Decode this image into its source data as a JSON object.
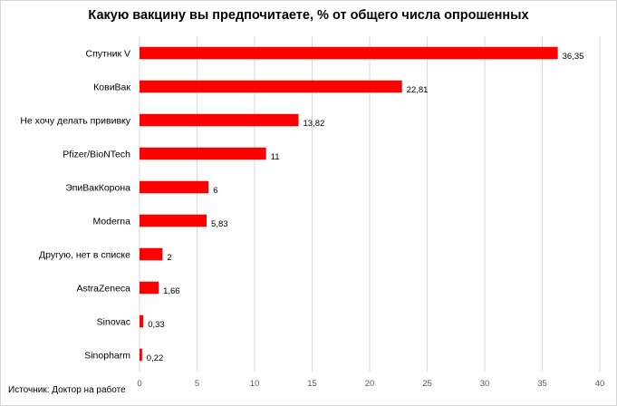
{
  "chart_data": {
    "type": "bar",
    "orientation": "horizontal",
    "title": "Какую вакцину вы предпочитаете, % от общего числа опрошенных",
    "categories": [
      "Спутник V",
      "КовиВак",
      "Не хочу делать прививку",
      "Pfizer/BioNTech",
      "ЭпиВакКорона",
      "Moderna",
      "Другую, нет в списке",
      "AstraZeneca",
      "Sinovac",
      "Sinopharm"
    ],
    "values": [
      36.35,
      22.81,
      13.82,
      11,
      6,
      5.83,
      2,
      1.66,
      0.33,
      0.22
    ],
    "value_labels": [
      "36,35",
      "22,81",
      "13,82",
      "11",
      "6",
      "5,83",
      "2",
      "1,66",
      "0,33",
      "0,22"
    ],
    "xlim": [
      0,
      40
    ],
    "xticks": [
      "0",
      "5",
      "10",
      "15",
      "20",
      "25",
      "30",
      "35",
      "40"
    ],
    "bar_color": "#ff0000",
    "grid": "vertical",
    "legend": "none"
  },
  "source_note": "Источник: Доктор на работе"
}
